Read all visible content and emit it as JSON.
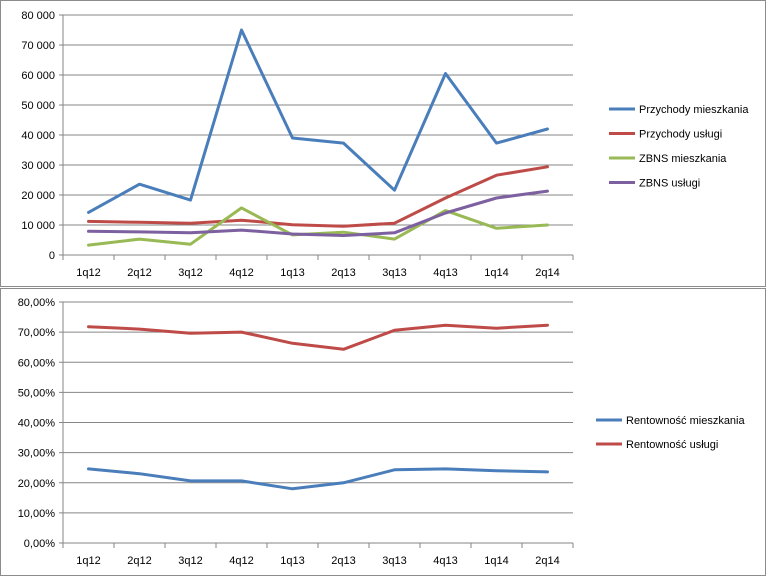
{
  "chart_data": [
    {
      "type": "line",
      "categories": [
        "1q12",
        "2q12",
        "3q12",
        "4q12",
        "1q13",
        "2q13",
        "3q13",
        "4q13",
        "1q14",
        "2q14"
      ],
      "ylim": [
        0,
        80000
      ],
      "yticks": [
        0,
        10000,
        20000,
        30000,
        40000,
        50000,
        60000,
        70000,
        80000
      ],
      "ytick_labels": [
        "0",
        "10 000",
        "20 000",
        "30 000",
        "40 000",
        "50 000",
        "60 000",
        "70 000",
        "80 000"
      ],
      "grid": true,
      "legend_position": "right",
      "series": [
        {
          "name": "Przychody mieszkania",
          "color": "#4a7ebb",
          "values": [
            14200,
            23600,
            18300,
            75000,
            39000,
            37300,
            21600,
            60500,
            37300,
            42000
          ]
        },
        {
          "name": "Przychody usługi",
          "color": "#be4b48",
          "values": [
            11200,
            10900,
            10600,
            11600,
            10100,
            9600,
            10600,
            19000,
            26600,
            29400
          ]
        },
        {
          "name": "ZBNS mieszkania",
          "color": "#98b954",
          "values": [
            3300,
            5300,
            3600,
            15700,
            6700,
            7600,
            5300,
            14800,
            8900,
            10000
          ]
        },
        {
          "name": "ZBNS usługi",
          "color": "#7d60a0",
          "values": [
            7900,
            7700,
            7400,
            8300,
            7000,
            6500,
            7400,
            14000,
            19000,
            21300
          ]
        }
      ]
    },
    {
      "type": "line",
      "categories": [
        "1q12",
        "2q12",
        "3q12",
        "4q12",
        "1q13",
        "2q13",
        "3q13",
        "4q13",
        "1q14",
        "2q14"
      ],
      "ylim": [
        0,
        80
      ],
      "yticks": [
        0,
        10,
        20,
        30,
        40,
        50,
        60,
        70,
        80
      ],
      "ytick_labels": [
        "0,00%",
        "10,00%",
        "20,00%",
        "30,00%",
        "40,00%",
        "50,00%",
        "60,00%",
        "70,00%",
        "80,00%"
      ],
      "grid": true,
      "legend_position": "right",
      "series": [
        {
          "name": "Rentowność mieszkania",
          "color": "#4a7ebb",
          "values": [
            24.6,
            23.0,
            20.6,
            20.6,
            18.0,
            20.0,
            24.3,
            24.6,
            24.0,
            23.6
          ]
        },
        {
          "name": "Rentowność usługi",
          "color": "#be4b48",
          "values": [
            71.8,
            71.0,
            69.6,
            70.0,
            66.3,
            64.3,
            70.6,
            72.3,
            71.3,
            72.3
          ]
        }
      ]
    }
  ]
}
